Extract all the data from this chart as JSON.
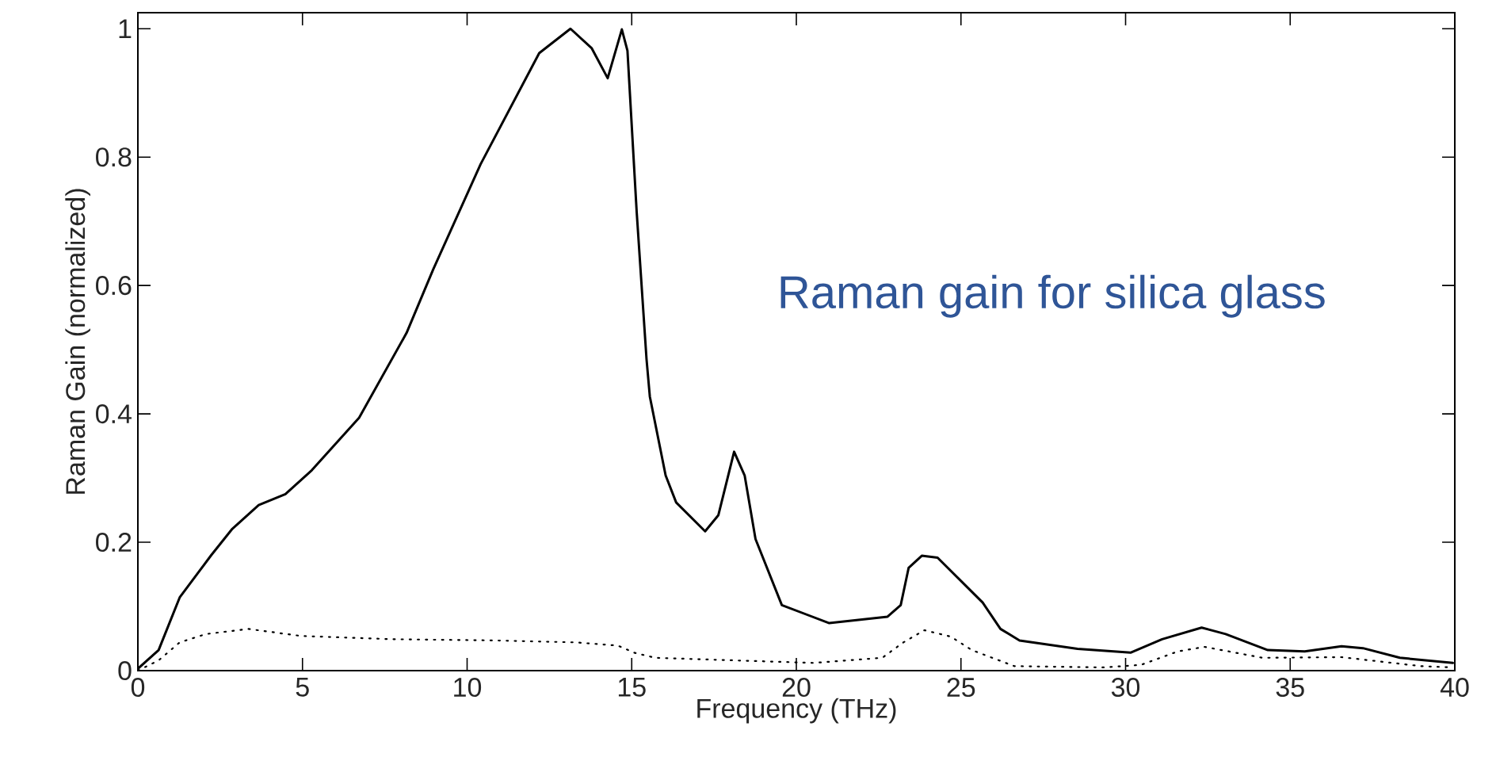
{
  "chart_data": {
    "type": "line",
    "xlabel": "Frequency (THz)",
    "ylabel": "Raman Gain (normalized)",
    "annotations": [
      "Raman gain for silica glass"
    ],
    "xlim": [
      0,
      40
    ],
    "ylim": [
      0,
      1.025
    ],
    "xticks": [
      0,
      5,
      10,
      15,
      20,
      25,
      30,
      35,
      40
    ],
    "yticks": [
      0,
      0.2,
      0.4,
      0.6,
      0.8,
      1
    ],
    "series": [
      {
        "color": "#000000",
        "line_style": "solid",
        "x": [
          0,
          0.63,
          1.27,
          2.23,
          2.87,
          3.67,
          4.48,
          5.28,
          6.72,
          8.16,
          8.97,
          10.41,
          12.19,
          13.14,
          13.78,
          14.27,
          14.7,
          14.87,
          15.15,
          15.45,
          15.55,
          16.03,
          16.35,
          17.23,
          17.63,
          18.11,
          18.43,
          18.76,
          19.56,
          21.0,
          22.77,
          23.17,
          23.41,
          23.81,
          24.29,
          25.66,
          26.2,
          26.78,
          28.54,
          30.15,
          31.11,
          32.31,
          33.04,
          34.32,
          35.44,
          36.56,
          37.21,
          38.33,
          39.94
        ],
        "values": [
          0.003,
          0.032,
          0.114,
          0.18,
          0.221,
          0.258,
          0.275,
          0.312,
          0.394,
          0.526,
          0.625,
          0.789,
          0.962,
          1.0,
          0.97,
          0.923,
          0.999,
          0.966,
          0.715,
          0.485,
          0.427,
          0.304,
          0.262,
          0.217,
          0.242,
          0.341,
          0.304,
          0.205,
          0.102,
          0.074,
          0.084,
          0.102,
          0.16,
          0.179,
          0.176,
          0.106,
          0.065,
          0.047,
          0.034,
          0.028,
          0.049,
          0.067,
          0.057,
          0.032,
          0.03,
          0.038,
          0.035,
          0.02,
          0.012
        ]
      },
      {
        "color": "#000000",
        "line_style": "dotted",
        "x": [
          0,
          0.63,
          1.27,
          2.07,
          3.35,
          4.96,
          7.69,
          10.9,
          13.3,
          14.58,
          15.07,
          15.71,
          18.11,
          20.52,
          22.61,
          23.25,
          23.89,
          24.69,
          25.33,
          26.62,
          29.35,
          30.47,
          31.59,
          32.4,
          34.16,
          36.56,
          38.97,
          39.94
        ],
        "values": [
          0,
          0.016,
          0.044,
          0.057,
          0.065,
          0.054,
          0.049,
          0.047,
          0.044,
          0.039,
          0.028,
          0.02,
          0.016,
          0.012,
          0.02,
          0.044,
          0.063,
          0.053,
          0.032,
          0.007,
          0.005,
          0.009,
          0.03,
          0.037,
          0.02,
          0.021,
          0.007,
          0.005
        ]
      }
    ]
  }
}
